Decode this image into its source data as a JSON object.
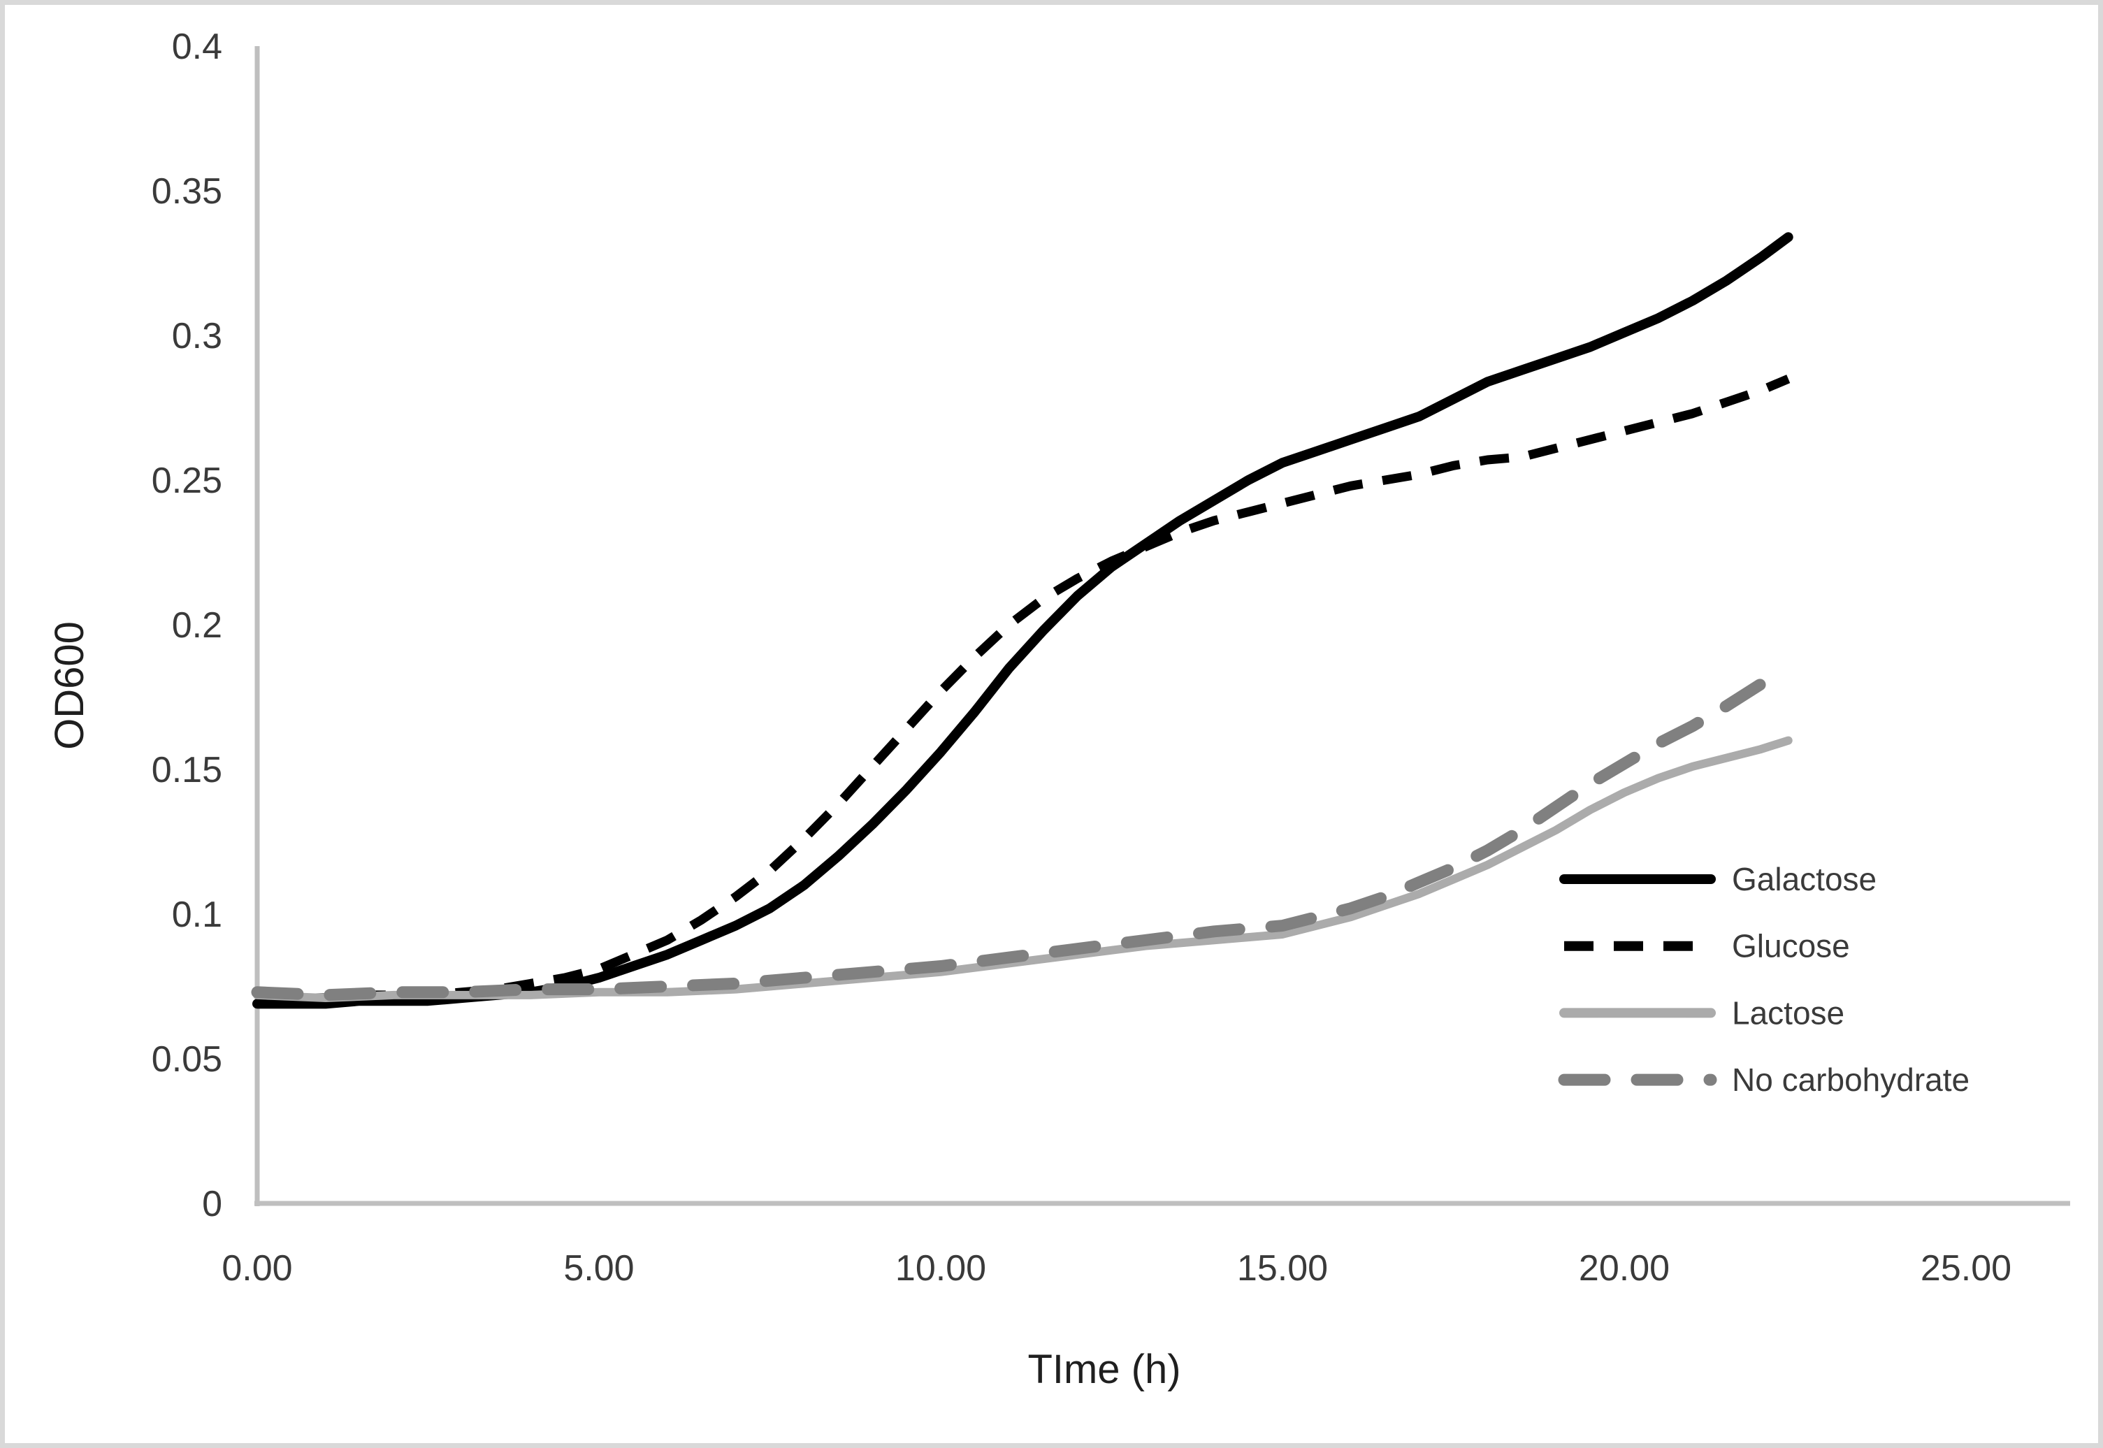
{
  "chart_data": {
    "type": "line",
    "title": "",
    "xlabel": "TIme (h)",
    "ylabel": "OD600",
    "xlim": [
      0,
      25
    ],
    "ylim": [
      0,
      0.4
    ],
    "grid": false,
    "legend_position": "inside-right",
    "axis_color": "#bfbfbf",
    "x_ticks": {
      "values": [
        0,
        5,
        10,
        15,
        20,
        25
      ],
      "labels": [
        "0.00",
        "5.00",
        "10.00",
        "15.00",
        "20.00",
        "25.00"
      ]
    },
    "y_ticks": {
      "values": [
        0,
        0.05,
        0.1,
        0.15,
        0.2,
        0.25,
        0.3,
        0.35,
        0.4
      ],
      "labels": [
        "0",
        "0.05",
        "0.1",
        "0.15",
        "0.2",
        "0.25",
        "0.3",
        "0.35",
        "0.4"
      ]
    },
    "series": [
      {
        "name": "Galactose",
        "color": "#000000",
        "style": "solid",
        "width": 14,
        "linecap": "round",
        "x": [
          0,
          0.5,
          1,
          1.5,
          2,
          2.5,
          3,
          3.5,
          4,
          4.5,
          5,
          5.5,
          6,
          6.5,
          7,
          7.5,
          8,
          8.5,
          9,
          9.5,
          10,
          10.5,
          11,
          11.5,
          12,
          12.5,
          13,
          13.5,
          14,
          14.5,
          15,
          15.5,
          16,
          16.5,
          17,
          17.5,
          18,
          18.5,
          19,
          19.5,
          20,
          20.5,
          21,
          21.5,
          22,
          22.4
        ],
        "y": [
          0.069,
          0.069,
          0.069,
          0.07,
          0.07,
          0.07,
          0.071,
          0.072,
          0.073,
          0.075,
          0.078,
          0.082,
          0.086,
          0.091,
          0.096,
          0.102,
          0.11,
          0.12,
          0.131,
          0.143,
          0.156,
          0.17,
          0.185,
          0.198,
          0.21,
          0.22,
          0.228,
          0.236,
          0.243,
          0.25,
          0.256,
          0.26,
          0.264,
          0.268,
          0.272,
          0.278,
          0.284,
          0.288,
          0.292,
          0.296,
          0.301,
          0.306,
          0.312,
          0.319,
          0.327,
          0.334
        ]
      },
      {
        "name": "Glucose",
        "color": "#000000",
        "style": "dashed",
        "width": 13,
        "dash": [
          42,
          29
        ],
        "linecap": "butt",
        "x": [
          0,
          0.5,
          1,
          1.5,
          2,
          2.5,
          3,
          3.5,
          4,
          4.5,
          5,
          5.5,
          6,
          6.5,
          7,
          7.5,
          8,
          8.5,
          9,
          9.5,
          10,
          10.5,
          11,
          11.5,
          12,
          12.5,
          13,
          13.5,
          14,
          14.5,
          15,
          15.5,
          16,
          16.5,
          17,
          17.5,
          18,
          18.5,
          19,
          19.5,
          20,
          20.5,
          21,
          21.5,
          22,
          22.4
        ],
        "y": [
          0.071,
          0.071,
          0.071,
          0.072,
          0.072,
          0.072,
          0.073,
          0.074,
          0.076,
          0.078,
          0.081,
          0.086,
          0.091,
          0.098,
          0.106,
          0.115,
          0.126,
          0.138,
          0.151,
          0.164,
          0.177,
          0.189,
          0.2,
          0.209,
          0.216,
          0.222,
          0.227,
          0.232,
          0.236,
          0.239,
          0.242,
          0.245,
          0.248,
          0.25,
          0.252,
          0.255,
          0.257,
          0.258,
          0.261,
          0.264,
          0.267,
          0.27,
          0.273,
          0.277,
          0.281,
          0.285
        ]
      },
      {
        "name": "Lactose",
        "color": "#ababab",
        "style": "solid",
        "width": 12,
        "linecap": "round",
        "x": [
          0,
          1,
          2,
          3,
          4,
          5,
          6,
          7,
          8,
          9,
          10,
          11,
          12,
          13,
          14,
          15,
          15.5,
          16,
          16.5,
          17,
          17.5,
          18,
          18.5,
          19,
          19.5,
          20,
          20.5,
          21,
          21.5,
          22,
          22.4
        ],
        "y": [
          0.072,
          0.071,
          0.072,
          0.072,
          0.072,
          0.073,
          0.073,
          0.074,
          0.076,
          0.078,
          0.08,
          0.083,
          0.086,
          0.089,
          0.091,
          0.093,
          0.096,
          0.099,
          0.103,
          0.107,
          0.112,
          0.117,
          0.123,
          0.129,
          0.136,
          0.142,
          0.147,
          0.151,
          0.154,
          0.157,
          0.16
        ]
      },
      {
        "name": "No carbohydrate",
        "color": "#808080",
        "style": "dashed",
        "width": 17,
        "dash": [
          58,
          46
        ],
        "linecap": "round",
        "x": [
          0,
          1,
          2,
          3,
          4,
          5,
          6,
          7,
          8,
          9,
          10,
          11,
          12,
          13,
          14,
          15,
          15.5,
          16,
          16.5,
          17,
          17.5,
          18,
          18.5,
          19,
          19.5,
          20,
          20.5,
          21,
          21.5,
          22.1
        ],
        "y": [
          0.073,
          0.072,
          0.073,
          0.073,
          0.074,
          0.074,
          0.075,
          0.076,
          0.078,
          0.08,
          0.082,
          0.085,
          0.088,
          0.091,
          0.094,
          0.096,
          0.099,
          0.102,
          0.106,
          0.111,
          0.116,
          0.122,
          0.129,
          0.137,
          0.145,
          0.152,
          0.159,
          0.165,
          0.172,
          0.181
        ]
      }
    ]
  }
}
